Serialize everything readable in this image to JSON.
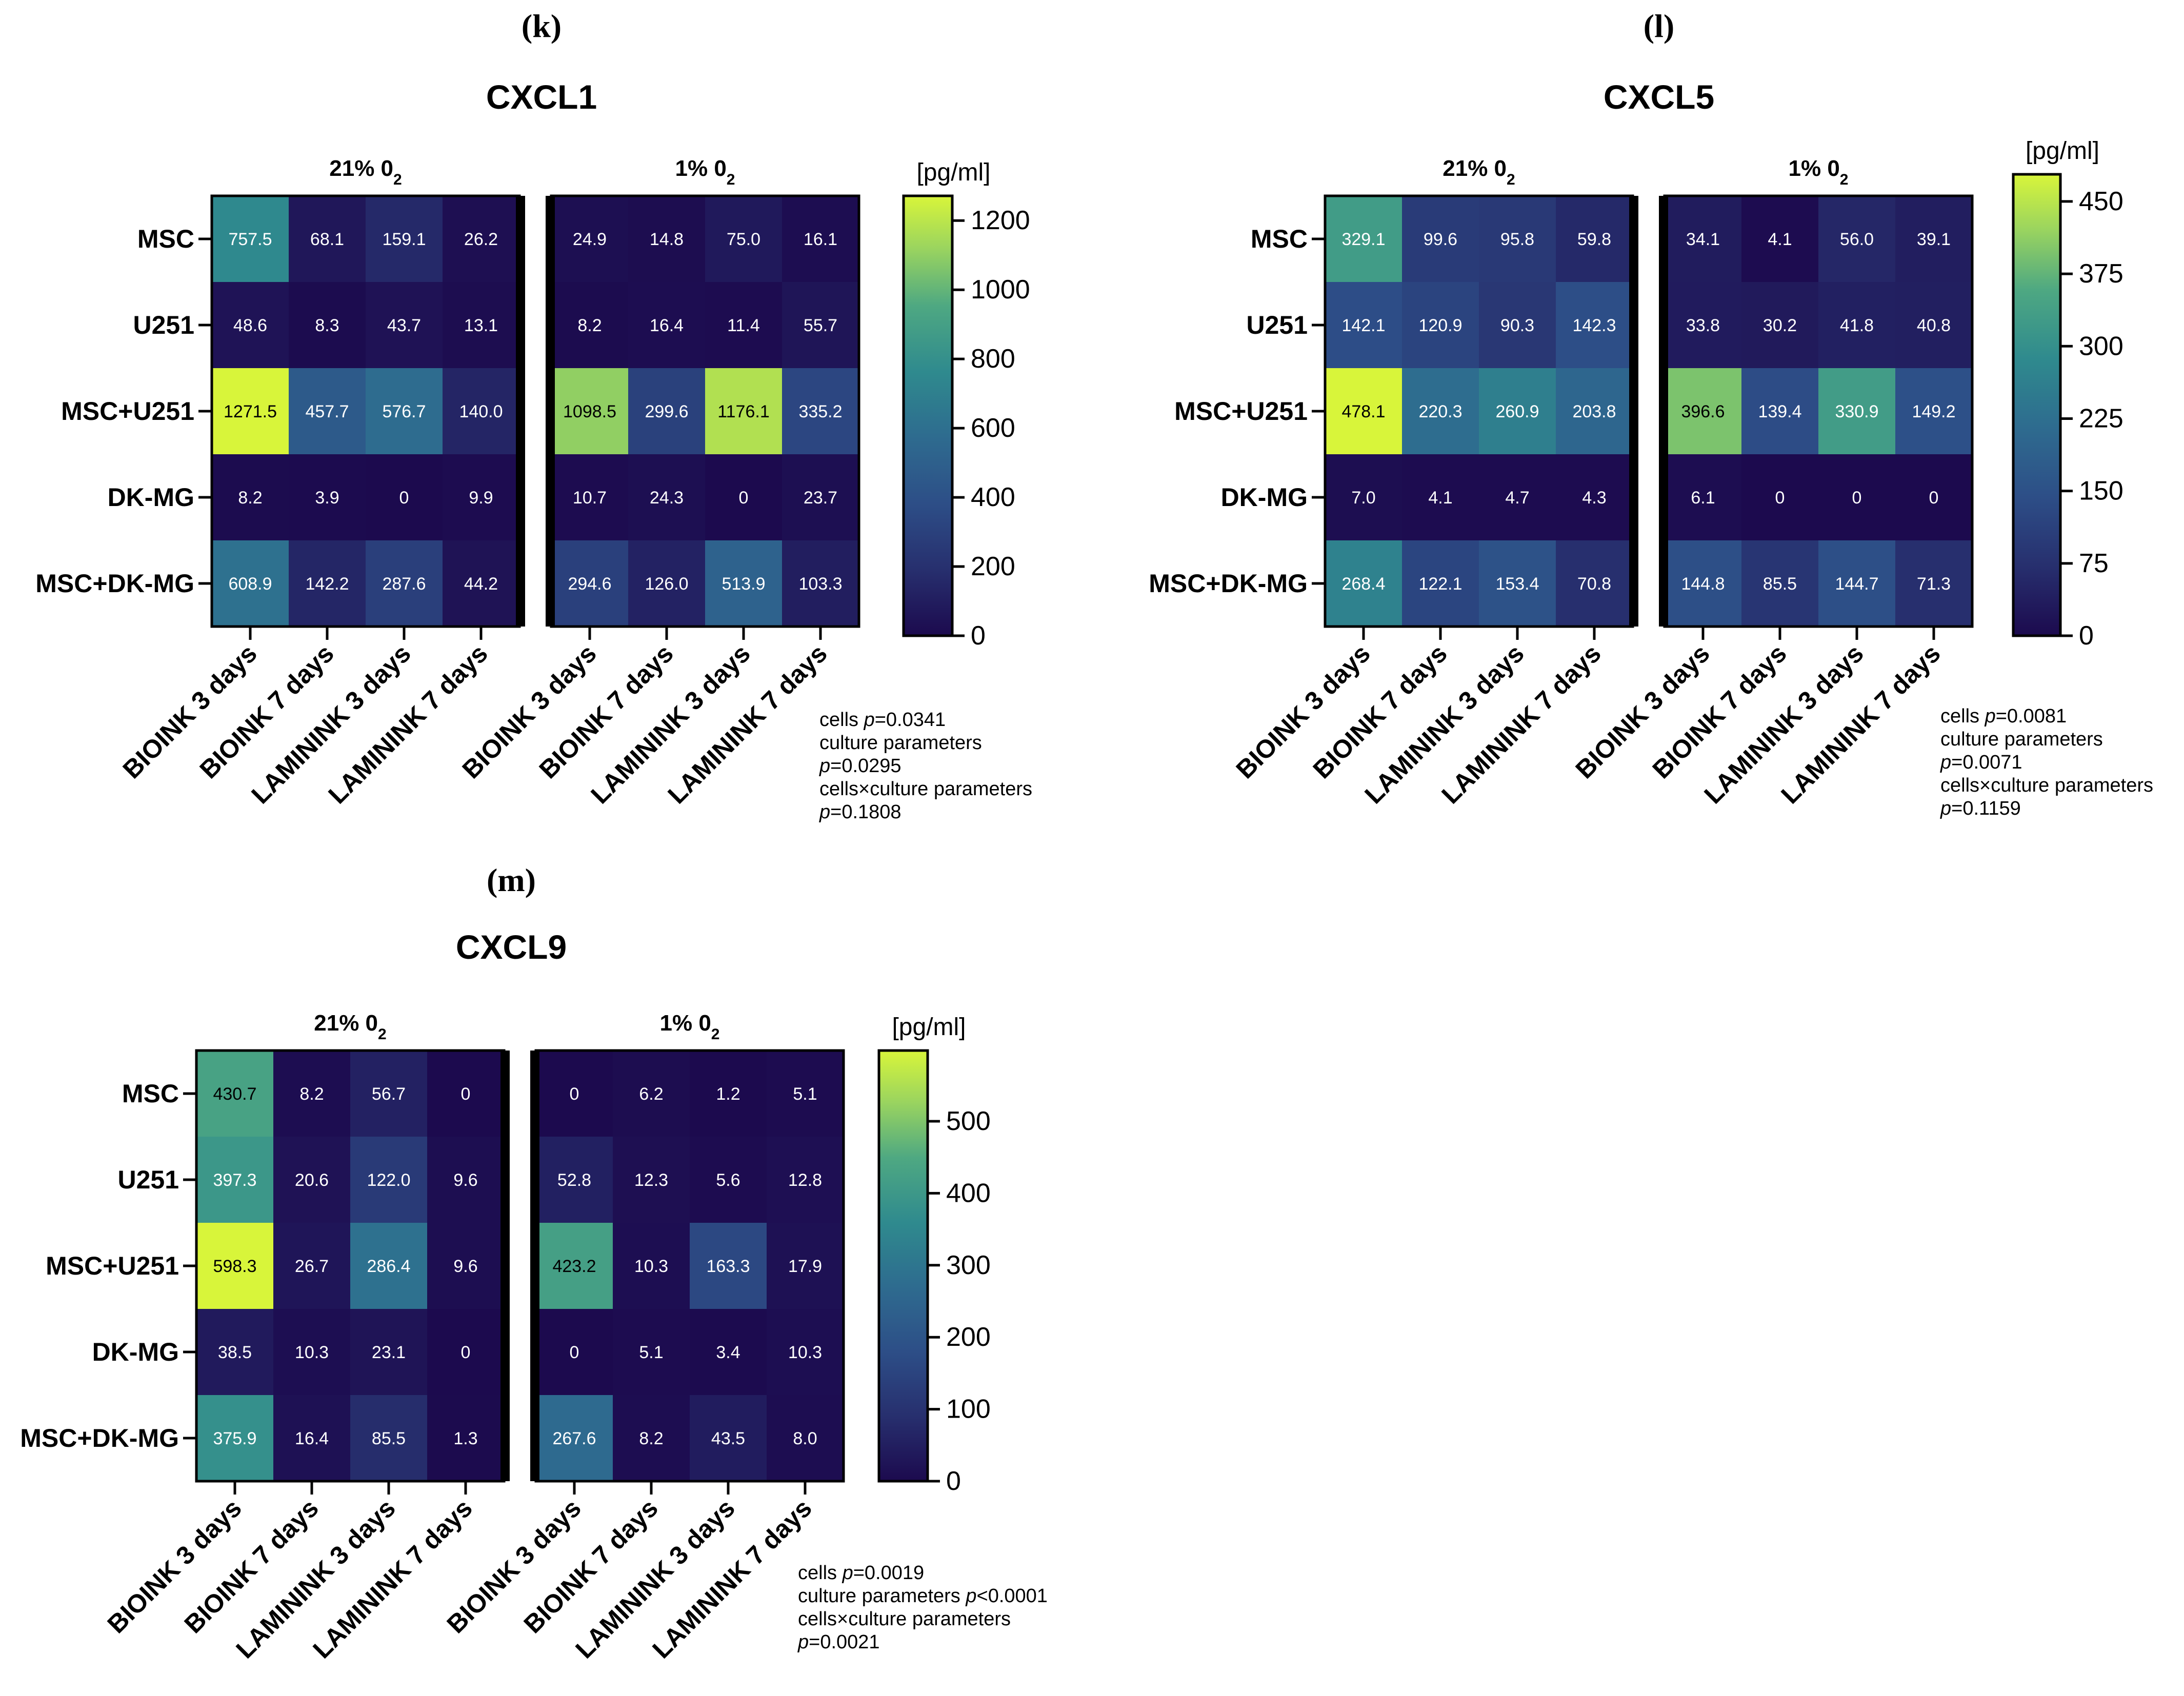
{
  "figure": {
    "panels": [
      {
        "letter": "(k)",
        "chart_data": {
          "type": "heatmap",
          "title": "CXCL1",
          "groups": [
            "21% 0",
            "1% 0"
          ],
          "group_subscript": "2",
          "rows": [
            "MSC",
            "U251",
            "MSC+U251",
            "DK-MG",
            "MSC+DK-MG"
          ],
          "columns": [
            "BIOINK 3 days",
            "BIOINK 7 days",
            "LAMININK 3 days",
            "LAMININK 7 days",
            "BIOINK 3 days",
            "BIOINK 7 days",
            "LAMININK 3 days",
            "LAMININK 7 days"
          ],
          "values": [
            [
              "757.5",
              "68.1",
              "159.1",
              "26.2",
              "24.9",
              "14.8",
              "75.0",
              "16.1"
            ],
            [
              "48.6",
              "8.3",
              "43.7",
              "13.1",
              "8.2",
              "16.4",
              "11.4",
              "55.7"
            ],
            [
              "1271.5",
              "457.7",
              "576.7",
              "140.0",
              "1098.5",
              "299.6",
              "1176.1",
              "335.2"
            ],
            [
              "8.2",
              "3.9",
              "0",
              "9.9",
              "10.7",
              "24.3",
              "0",
              "23.7"
            ],
            [
              "608.9",
              "142.2",
              "287.6",
              "44.2",
              "294.6",
              "126.0",
              "513.9",
              "103.3"
            ]
          ],
          "colorbar": {
            "label": "[pg/ml]",
            "min": 0,
            "max": 1271.5,
            "ticks": [
              "0",
              "200",
              "400",
              "600",
              "800",
              "1000",
              "1200"
            ]
          },
          "stats": [
            [
              [
                "t",
                "cells "
              ],
              [
                "i",
                "p"
              ],
              [
                "t",
                "=0.0341"
              ]
            ],
            [
              [
                "t",
                "culture parameters"
              ]
            ],
            [
              [
                "i",
                "p"
              ],
              [
                "t",
                "=0.0295"
              ]
            ],
            [
              [
                "t",
                "cells×culture parameters"
              ]
            ],
            [
              [
                "i",
                "p"
              ],
              [
                "t",
                "=0.1808"
              ]
            ]
          ]
        }
      },
      {
        "letter": "(l)",
        "chart_data": {
          "type": "heatmap",
          "title": "CXCL5",
          "groups": [
            "21% 0",
            "1% 0"
          ],
          "group_subscript": "2",
          "rows": [
            "MSC",
            "U251",
            "MSC+U251",
            "DK-MG",
            "MSC+DK-MG"
          ],
          "columns": [
            "BIOINK 3 days",
            "BIOINK 7 days",
            "LAMININK 3 days",
            "LAMININK 7 days",
            "BIOINK 3 days",
            "BIOINK 7 days",
            "LAMININK 3 days",
            "LAMININK 7 days"
          ],
          "values": [
            [
              "329.1",
              "99.6",
              "95.8",
              "59.8",
              "34.1",
              "4.1",
              "56.0",
              "39.1"
            ],
            [
              "142.1",
              "120.9",
              "90.3",
              "142.3",
              "33.8",
              "30.2",
              "41.8",
              "40.8"
            ],
            [
              "478.1",
              "220.3",
              "260.9",
              "203.8",
              "396.6",
              "139.4",
              "330.9",
              "149.2"
            ],
            [
              "7.0",
              "4.1",
              "4.7",
              "4.3",
              "6.1",
              "0",
              "0",
              "0"
            ],
            [
              "268.4",
              "122.1",
              "153.4",
              "70.8",
              "144.8",
              "85.5",
              "144.7",
              "71.3"
            ]
          ],
          "colorbar": {
            "label": "[pg/ml]",
            "min": 0,
            "max": 478.1,
            "ticks": [
              "0",
              "75",
              "150",
              "225",
              "300",
              "375",
              "450"
            ]
          },
          "stats": [
            [
              [
                "t",
                "cells "
              ],
              [
                "i",
                "p"
              ],
              [
                "t",
                "=0.0081"
              ]
            ],
            [
              [
                "t",
                "culture parameters"
              ]
            ],
            [
              [
                "i",
                "p"
              ],
              [
                "t",
                "=0.0071"
              ]
            ],
            [
              [
                "t",
                "cells×culture parameters"
              ]
            ],
            [
              [
                "i",
                "p"
              ],
              [
                "t",
                "=0.1159"
              ]
            ]
          ]
        }
      },
      {
        "letter": "(m)",
        "chart_data": {
          "type": "heatmap",
          "title": "CXCL9",
          "groups": [
            "21% 0",
            "1% 0"
          ],
          "group_subscript": "2",
          "rows": [
            "MSC",
            "U251",
            "MSC+U251",
            "DK-MG",
            "MSC+DK-MG"
          ],
          "columns": [
            "BIOINK 3 days",
            "BIOINK 7 days",
            "LAMININK 3 days",
            "LAMININK 7 days",
            "BIOINK 3 days",
            "BIOINK 7 days",
            "LAMININK 3 days",
            "LAMININK 7 days"
          ],
          "values": [
            [
              "430.7",
              "8.2",
              "56.7",
              "0",
              "0",
              "6.2",
              "1.2",
              "5.1"
            ],
            [
              "397.3",
              "20.6",
              "122.0",
              "9.6",
              "52.8",
              "12.3",
              "5.6",
              "12.8"
            ],
            [
              "598.3",
              "26.7",
              "286.4",
              "9.6",
              "423.2",
              "10.3",
              "163.3",
              "17.9"
            ],
            [
              "38.5",
              "10.3",
              "23.1",
              "0",
              "0",
              "5.1",
              "3.4",
              "10.3"
            ],
            [
              "375.9",
              "16.4",
              "85.5",
              "1.3",
              "267.6",
              "8.2",
              "43.5",
              "8.0"
            ]
          ],
          "colorbar": {
            "label": "[pg/ml]",
            "min": 0,
            "max": 598.3,
            "ticks": [
              "0",
              "100",
              "200",
              "300",
              "400",
              "500"
            ]
          },
          "stats": [
            [
              [
                "t",
                "cells "
              ],
              [
                "i",
                "p"
              ],
              [
                "t",
                "=0.0019"
              ]
            ],
            [
              [
                "t",
                "culture parameters "
              ],
              [
                "i",
                "p"
              ],
              [
                "t",
                "<0.0001"
              ]
            ],
            [
              [
                "t",
                "cells×culture parameters"
              ]
            ],
            [
              [
                "i",
                "p"
              ],
              [
                "t",
                "=0.0021"
              ]
            ]
          ]
        }
      }
    ]
  }
}
